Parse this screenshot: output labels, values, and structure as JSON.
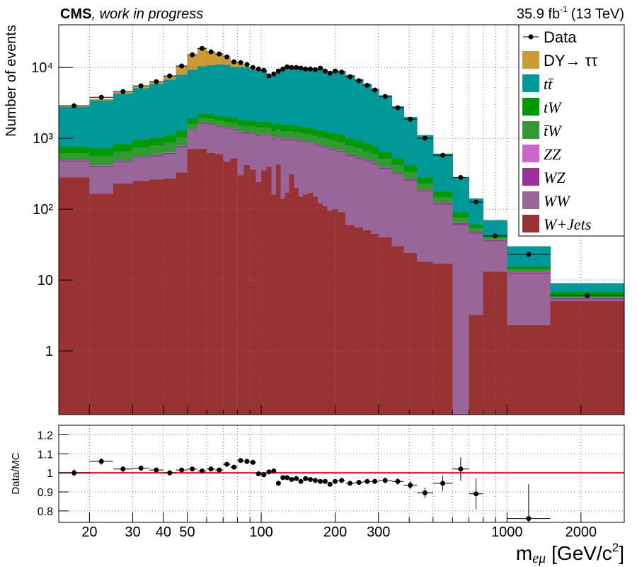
{
  "chart_data": [
    {
      "type": "stacked_histogram",
      "title": "CMS",
      "subtitle": ", work in progress",
      "lumi": "35.9 fb",
      "lumi_sup": "-1",
      "energy": "(13 TeV)",
      "y_label": "Number of events",
      "log_y": true,
      "grid": true,
      "legend": "top-right",
      "ylim": [
        0.126,
        40000
      ],
      "yticks": [
        1,
        10,
        {
          "value": 100,
          "label": "10²"
        },
        {
          "value": 1000,
          "label": "10³"
        },
        {
          "value": 10000,
          "label": "10⁴"
        }
      ],
      "bins": [
        15,
        20,
        25,
        30,
        35,
        40,
        45,
        50,
        55,
        60,
        65,
        70,
        75,
        80,
        85,
        90,
        95,
        100,
        105,
        110,
        115,
        120,
        125,
        130,
        136,
        142,
        148,
        155,
        162,
        170,
        178,
        186,
        195,
        205,
        220,
        240,
        260,
        280,
        300,
        340,
        380,
        430,
        500,
        600,
        700,
        800,
        1000,
        1500,
        3000
      ],
      "data": {
        "name": "Data",
        "color": "#000000",
        "values": [
          2880,
          3800,
          4570,
          5500,
          6300,
          7600,
          10500,
          15100,
          18600,
          16600,
          15500,
          14100,
          12000,
          11700,
          11000,
          10000,
          9500,
          9100,
          7600,
          8100,
          8900,
          9500,
          10200,
          10000,
          10000,
          9800,
          9500,
          9500,
          9300,
          9800,
          8900,
          8300,
          8900,
          8600,
          7400,
          6500,
          5600,
          4800,
          3900,
          2700,
          1860,
          1000,
          575,
          280,
          126,
          42,
          23,
          6
        ]
      },
      "series": [
        {
          "name": "DY→ ττ",
          "color": "#cc9933",
          "values": [
            100,
            150,
            200,
            250,
            350,
            900,
            2500,
            5500,
            8000,
            5500,
            4200,
            2600,
            1500,
            800,
            350,
            180,
            100,
            70,
            50,
            40,
            35,
            30,
            30,
            25,
            25,
            20,
            20,
            18,
            15,
            15,
            12,
            10,
            10,
            8,
            6,
            5,
            4,
            3,
            2,
            1.5,
            1,
            0.6,
            0.4,
            0.2,
            0.1,
            0,
            0,
            0
          ]
        },
        {
          "name": "tt̄",
          "color": "#009999",
          "values": [
            2020,
            2710,
            3450,
            4170,
            4840,
            5600,
            6550,
            7410,
            8170,
            8570,
            8990,
            8890,
            8200,
            8370,
            8240,
            7530,
            7750,
            7410,
            5820,
            6430,
            7760,
            8180,
            8870,
            8800,
            8790,
            8770,
            8350,
            8430,
            8340,
            8960,
            8060,
            7620,
            8150,
            7830,
            6830,
            5910,
            5020,
            4260,
            3410,
            2310,
            1580,
            836,
            432,
            186,
            81,
            27,
            14.4,
            2.2
          ]
        },
        {
          "name": "tW",
          "color": "#009900",
          "values": [
            140,
            160,
            180,
            200,
            220,
            240,
            260,
            280,
            290,
            295,
            300,
            300,
            300,
            295,
            295,
            290,
            290,
            285,
            280,
            280,
            280,
            280,
            280,
            275,
            275,
            270,
            265,
            260,
            255,
            250,
            245,
            240,
            235,
            230,
            210,
            195,
            175,
            160,
            135,
            100,
            75,
            48,
            27,
            13,
            6.5,
            3.2,
            1.3,
            0.6
          ]
        },
        {
          "name": "t̄W",
          "color": "#339933",
          "values": [
            130,
            150,
            170,
            190,
            210,
            230,
            250,
            270,
            280,
            285,
            290,
            290,
            290,
            285,
            285,
            280,
            280,
            275,
            270,
            270,
            270,
            270,
            270,
            265,
            265,
            260,
            255,
            250,
            245,
            240,
            235,
            230,
            225,
            220,
            200,
            185,
            165,
            150,
            125,
            95,
            70,
            45,
            25,
            12,
            6,
            3,
            1.2,
            0.6
          ]
        },
        {
          "name": "ZZ",
          "color": "#cc66cc",
          "values": [
            5,
            5,
            6,
            6,
            7,
            8,
            9,
            10,
            11,
            11,
            11,
            11,
            11,
            11,
            11,
            11,
            11,
            10,
            10,
            10,
            10,
            10,
            10,
            10,
            10,
            9,
            9,
            9,
            9,
            9,
            8,
            8,
            8,
            7,
            7,
            6,
            6,
            5,
            5,
            4,
            3,
            2.5,
            1.8,
            1.2,
            0.8,
            0.5,
            0.3,
            0.1
          ]
        },
        {
          "name": "WZ",
          "color": "#993399",
          "values": [
            15,
            15,
            16,
            18,
            20,
            22,
            25,
            30,
            35,
            35,
            34,
            34,
            33,
            33,
            32,
            32,
            31,
            31,
            30,
            30,
            30,
            30,
            30,
            29,
            29,
            28,
            28,
            27,
            27,
            26,
            26,
            25,
            24,
            23,
            21,
            20,
            18,
            16,
            14,
            12,
            10,
            7,
            5,
            3,
            2,
            1.2,
            0.5,
            0.2
          ]
        },
        {
          "name": "WW",
          "color": "#996699",
          "values": [
            190,
            230,
            230,
            280,
            300,
            330,
            420,
            600,
            900,
            950,
            850,
            900,
            800,
            900,
            750,
            800,
            850,
            760,
            700,
            800,
            600,
            800,
            780,
            650,
            720,
            750,
            700,
            680,
            650,
            640,
            620,
            600,
            570,
            550,
            500,
            460,
            420,
            390,
            330,
            280,
            230,
            160,
            100,
            60,
            42,
            22,
            10,
            0.3
          ]
        },
        {
          "name": "W+Jets",
          "color": "#993333",
          "values": [
            280,
            165,
            230,
            250,
            260,
            270,
            330,
            700,
            710,
            620,
            600,
            470,
            520,
            300,
            420,
            360,
            240,
            350,
            400,
            160,
            430,
            140,
            170,
            310,
            200,
            150,
            160,
            170,
            150,
            120,
            110,
            95,
            100,
            90,
            60,
            55,
            50,
            45,
            40,
            30,
            24,
            18,
            17,
            0,
            3.2,
            13,
            2.3,
            5
          ]
        }
      ]
    },
    {
      "type": "ratio",
      "y_label": "Data/MC",
      "x_label": {
        "main": "m",
        "sub": "eμ",
        "unit": "[GeV/c",
        "sup": "2",
        "close": "]"
      },
      "log_x": true,
      "grid": true,
      "xlim": [
        15,
        3000
      ],
      "xticks": [
        20,
        30,
        40,
        50,
        100,
        200,
        300,
        1000,
        2000
      ],
      "xminor": [
        60,
        70,
        80,
        90,
        400,
        500,
        600,
        700,
        800,
        900
      ],
      "ylim": [
        0.74,
        1.25
      ],
      "yticks": [
        0.8,
        0.9,
        1,
        1.1,
        1.2
      ],
      "reference_line": {
        "value": 1,
        "color": "#ff0000"
      },
      "color": "#000000",
      "values": [
        1.0,
        1.06,
        1.02,
        1.025,
        1.015,
        1.0,
        1.015,
        1.02,
        1.01,
        1.02,
        1.015,
        1.045,
        1.03,
        1.065,
        1.06,
        1.055,
        0.995,
        0.99,
        1.005,
        1.01,
        0.945,
        0.975,
        0.975,
        0.965,
        0.97,
        0.955,
        0.97,
        0.965,
        0.96,
        0.955,
        0.955,
        0.94,
        0.955,
        0.96,
        0.945,
        0.95,
        0.955,
        0.955,
        0.96,
        0.955,
        0.935,
        0.895,
        0.945,
        1.02,
        0.89,
        null,
        0.76,
        null
      ],
      "errors": [
        0.019,
        0.017,
        0.015,
        0.014,
        0.013,
        0.011,
        0.01,
        0.008,
        0.007,
        0.008,
        0.008,
        0.009,
        0.009,
        0.01,
        0.01,
        0.01,
        0.01,
        0.01,
        0.012,
        0.011,
        0.01,
        0.01,
        0.01,
        0.01,
        0.01,
        0.01,
        0.01,
        0.01,
        0.01,
        0.01,
        0.01,
        0.011,
        0.01,
        0.011,
        0.012,
        0.012,
        0.013,
        0.014,
        0.015,
        0.018,
        0.021,
        0.028,
        0.04,
        0.061,
        0.08,
        null,
        0.18,
        null
      ]
    }
  ]
}
